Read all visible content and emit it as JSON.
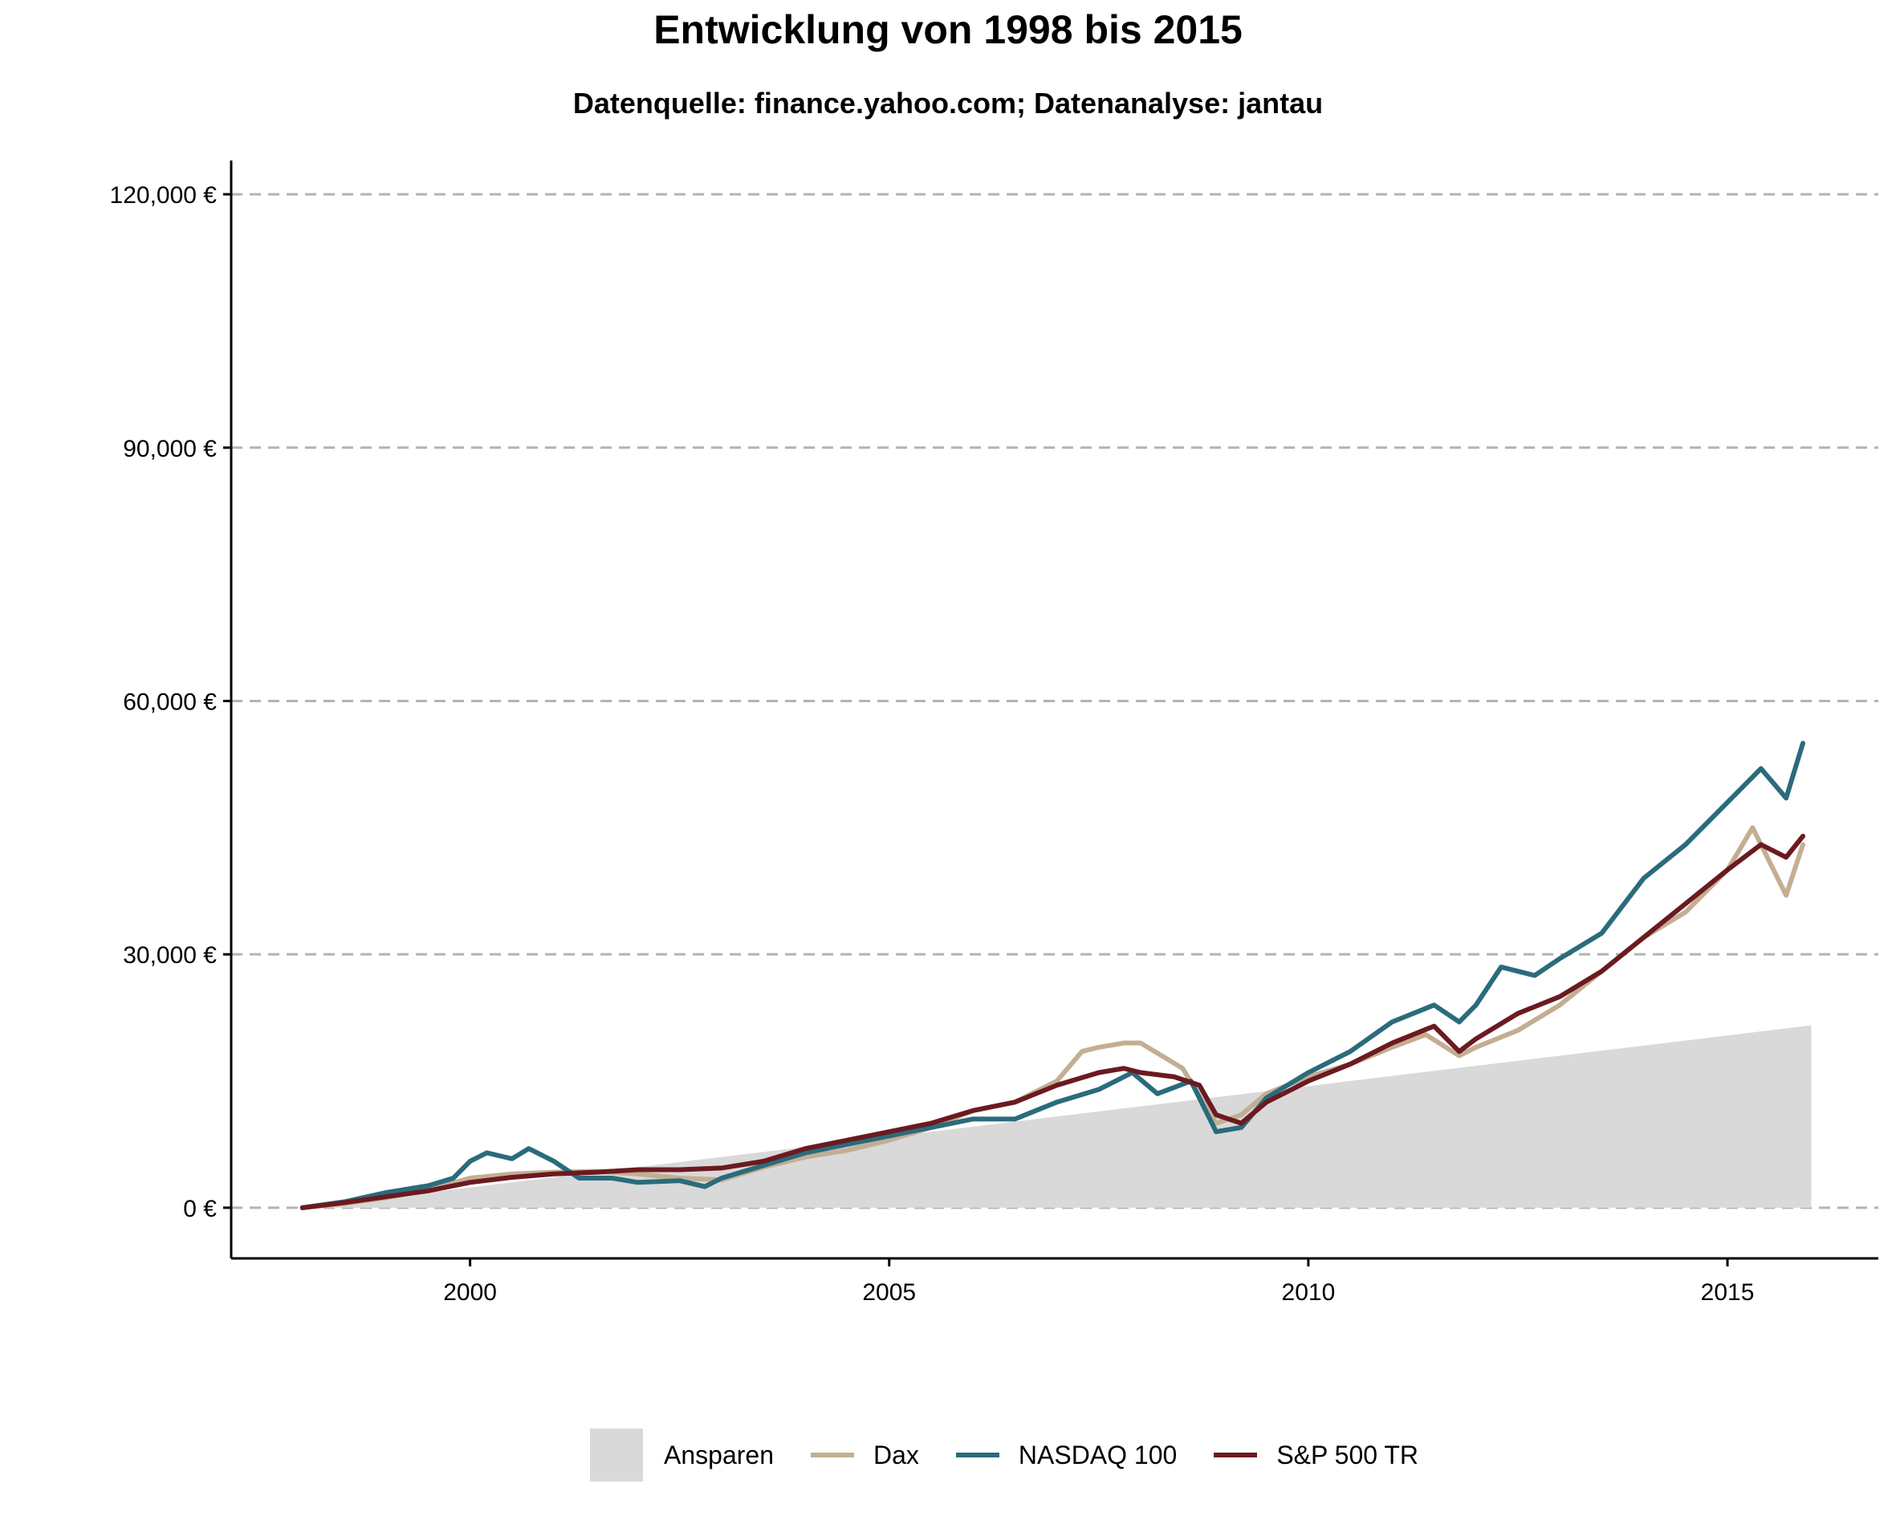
{
  "chart_data": {
    "type": "line",
    "title": "Entwicklung von 1998 bis 2015",
    "subtitle": "Datenquelle: finance.yahoo.com; Datenanalyse: jantau",
    "xlabel": "",
    "ylabel": "",
    "xlim": [
      1997.15,
      2016.8
    ],
    "ylim": [
      -6000,
      124000
    ],
    "x_ticks": [
      2000,
      2005,
      2010,
      2015
    ],
    "y_ticks": [
      0,
      30000,
      60000,
      90000,
      120000
    ],
    "y_tick_labels": [
      "0 €",
      "30,000 €",
      "60,000 €",
      "90,000 €",
      "120,000 €"
    ],
    "grid": "horizontal dashed",
    "legend_position": "bottom",
    "area": {
      "name": "Ansparen",
      "color": "#d9d9d9",
      "x": [
        1998.0,
        2016.0
      ],
      "y": [
        0,
        21600
      ]
    },
    "series": [
      {
        "name": "Dax",
        "color": "#c4ae92",
        "x": [
          1998.0,
          1998.5,
          1999.0,
          1999.5,
          2000.0,
          2000.5,
          2001.0,
          2001.5,
          2002.0,
          2002.5,
          2003.0,
          2003.5,
          2004.0,
          2004.5,
          2005.0,
          2005.5,
          2006.0,
          2006.5,
          2007.0,
          2007.3,
          2007.5,
          2007.8,
          2008.0,
          2008.5,
          2008.9,
          2009.2,
          2009.5,
          2010.0,
          2010.5,
          2011.0,
          2011.4,
          2011.8,
          2012.0,
          2012.5,
          2013.0,
          2013.5,
          2014.0,
          2014.5,
          2015.0,
          2015.3,
          2015.7,
          2015.9
        ],
        "y": [
          0,
          500,
          1200,
          2100,
          3500,
          4000,
          4200,
          4300,
          4000,
          3500,
          3300,
          4800,
          6000,
          6800,
          8000,
          9500,
          11500,
          12500,
          15000,
          18500,
          19000,
          19500,
          19500,
          16500,
          10000,
          11000,
          13500,
          15500,
          17000,
          19000,
          20500,
          18000,
          19000,
          21000,
          24000,
          28000,
          32000,
          35000,
          40000,
          45000,
          37000,
          43000
        ]
      },
      {
        "name": "NASDAQ 100",
        "color": "#2a6b7c",
        "x": [
          1998.0,
          1998.5,
          1999.0,
          1999.5,
          1999.8,
          2000.0,
          2000.2,
          2000.5,
          2000.7,
          2001.0,
          2001.3,
          2001.7,
          2002.0,
          2002.5,
          2002.8,
          2003.0,
          2003.5,
          2004.0,
          2004.5,
          2005.0,
          2005.5,
          2006.0,
          2006.5,
          2007.0,
          2007.5,
          2007.9,
          2008.2,
          2008.6,
          2008.9,
          2009.2,
          2009.5,
          2010.0,
          2010.5,
          2011.0,
          2011.5,
          2011.8,
          2012.0,
          2012.3,
          2012.7,
          2013.0,
          2013.5,
          2014.0,
          2014.5,
          2015.0,
          2015.4,
          2015.7,
          2015.9
        ],
        "y": [
          0,
          700,
          1800,
          2600,
          3500,
          5500,
          6500,
          5800,
          7000,
          5500,
          3500,
          3500,
          3000,
          3200,
          2500,
          3500,
          5000,
          6500,
          7500,
          8500,
          9500,
          10500,
          10500,
          12500,
          14000,
          16000,
          13500,
          15000,
          9000,
          9500,
          13000,
          16000,
          18500,
          22000,
          24000,
          22000,
          24000,
          28500,
          27500,
          29500,
          32500,
          39000,
          43000,
          48000,
          52000,
          48500,
          55000
        ]
      },
      {
        "name": "S&P 500 TR",
        "color": "#6b1a20",
        "x": [
          1998.0,
          1998.5,
          1999.0,
          1999.5,
          2000.0,
          2000.5,
          2001.0,
          2001.5,
          2002.0,
          2002.5,
          2003.0,
          2003.5,
          2004.0,
          2004.5,
          2005.0,
          2005.5,
          2006.0,
          2006.5,
          2007.0,
          2007.5,
          2007.8,
          2008.0,
          2008.4,
          2008.7,
          2008.9,
          2009.2,
          2009.5,
          2010.0,
          2010.5,
          2011.0,
          2011.5,
          2011.8,
          2012.0,
          2012.5,
          2013.0,
          2013.5,
          2014.0,
          2014.5,
          2015.0,
          2015.4,
          2015.7,
          2015.9
        ],
        "y": [
          0,
          600,
          1300,
          2000,
          3000,
          3600,
          4000,
          4200,
          4500,
          4500,
          4700,
          5500,
          7000,
          8000,
          9000,
          10000,
          11500,
          12500,
          14500,
          16000,
          16500,
          16000,
          15500,
          14500,
          11000,
          10000,
          12500,
          15000,
          17000,
          19500,
          21500,
          18500,
          20000,
          23000,
          25000,
          28000,
          32000,
          36000,
          40000,
          43000,
          41500,
          44000
        ]
      }
    ]
  }
}
